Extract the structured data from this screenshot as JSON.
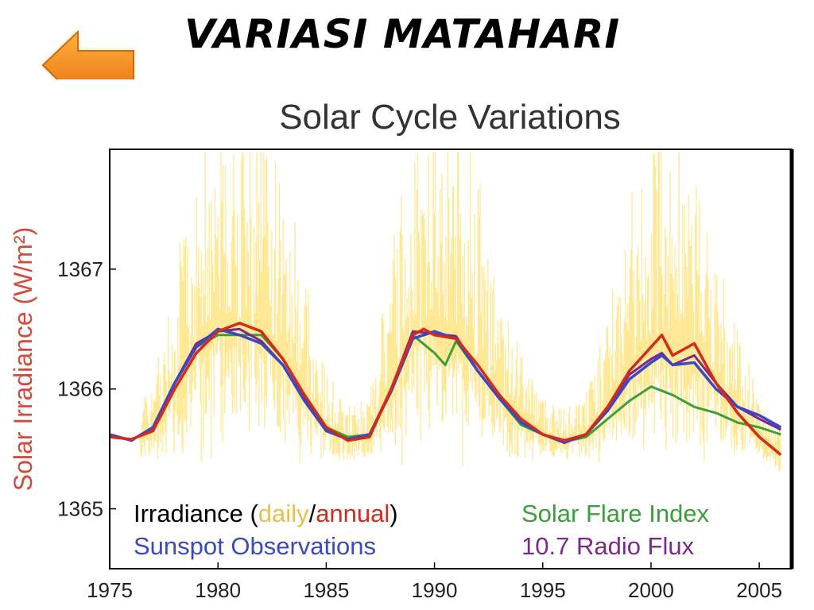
{
  "slide": {
    "title": "VARIASI MATAHARI",
    "back_icon": "left-arrow-icon"
  },
  "colors": {
    "daily": "#ffd84a",
    "annual": "#d42a1a",
    "sunspot": "#3a48c8",
    "flare": "#3aa03a",
    "radio": "#7a2a8a",
    "ylabel": "#d44a3a",
    "arrow": "#f08a1a"
  },
  "chart_data": {
    "type": "line",
    "title": "Solar Cycle Variations",
    "xlabel": "",
    "ylabel": "Solar Irradiance (W/m²)",
    "xlim": [
      1975,
      2006.5
    ],
    "ylim": [
      1364.5,
      1368.0
    ],
    "x_ticks": [
      "1975",
      "1980",
      "1985",
      "1990",
      "1995",
      "2000",
      "2005"
    ],
    "y_ticks": [
      "1365",
      "1366",
      "1367"
    ],
    "legend": [
      {
        "text": "Irradiance (",
        "color": "#000000"
      },
      {
        "text": "daily",
        "color": "#e8c14a"
      },
      {
        "text": "/",
        "color": "#000000"
      },
      {
        "text": "annual",
        "color": "#d42a1a"
      },
      {
        "text": ")",
        "color": "#000000"
      }
    ],
    "legend_items": {
      "sunspot": "Sunspot Observations",
      "flare": "Solar Flare Index",
      "radio": "10.7 Radio Flux"
    },
    "series": [
      {
        "key": "annual",
        "values": [
          [
            1975.0,
            1365.6
          ],
          [
            1976.0,
            1365.58
          ],
          [
            1977.0,
            1365.65
          ],
          [
            1978.0,
            1366.0
          ],
          [
            1979.0,
            1366.3
          ],
          [
            1980.0,
            1366.48
          ],
          [
            1981.0,
            1366.55
          ],
          [
            1982.0,
            1366.48
          ],
          [
            1983.0,
            1366.25
          ],
          [
            1984.0,
            1365.95
          ],
          [
            1985.0,
            1365.68
          ],
          [
            1986.0,
            1365.57
          ],
          [
            1987.0,
            1365.6
          ],
          [
            1988.0,
            1366.0
          ],
          [
            1989.0,
            1366.45
          ],
          [
            1989.5,
            1366.5
          ],
          [
            1990.0,
            1366.45
          ],
          [
            1991.0,
            1366.42
          ],
          [
            1992.0,
            1366.2
          ],
          [
            1993.0,
            1365.95
          ],
          [
            1994.0,
            1365.75
          ],
          [
            1995.0,
            1365.62
          ],
          [
            1996.0,
            1365.57
          ],
          [
            1997.0,
            1365.62
          ],
          [
            1998.0,
            1365.85
          ],
          [
            1999.0,
            1366.15
          ],
          [
            2000.0,
            1366.35
          ],
          [
            2000.5,
            1366.45
          ],
          [
            2001.0,
            1366.28
          ],
          [
            2002.0,
            1366.38
          ],
          [
            2003.0,
            1366.05
          ],
          [
            2004.0,
            1365.8
          ],
          [
            2005.0,
            1365.6
          ],
          [
            2006.0,
            1365.45
          ]
        ]
      },
      {
        "key": "sunspot",
        "values": [
          [
            1975.0,
            1365.62
          ],
          [
            1976.0,
            1365.57
          ],
          [
            1977.0,
            1365.68
          ],
          [
            1978.0,
            1366.05
          ],
          [
            1979.0,
            1366.35
          ],
          [
            1980.0,
            1366.5
          ],
          [
            1981.0,
            1366.45
          ],
          [
            1982.0,
            1366.38
          ],
          [
            1983.0,
            1366.2
          ],
          [
            1984.0,
            1365.9
          ],
          [
            1985.0,
            1365.65
          ],
          [
            1986.0,
            1365.58
          ],
          [
            1987.0,
            1365.62
          ],
          [
            1988.0,
            1365.98
          ],
          [
            1989.0,
            1366.42
          ],
          [
            1990.0,
            1366.48
          ],
          [
            1991.0,
            1366.42
          ],
          [
            1992.0,
            1366.15
          ],
          [
            1993.0,
            1365.92
          ],
          [
            1994.0,
            1365.72
          ],
          [
            1995.0,
            1365.62
          ],
          [
            1996.0,
            1365.56
          ],
          [
            1997.0,
            1365.62
          ],
          [
            1998.0,
            1365.82
          ],
          [
            1999.0,
            1366.08
          ],
          [
            2000.0,
            1366.22
          ],
          [
            2000.5,
            1366.28
          ],
          [
            2001.0,
            1366.2
          ],
          [
            2002.0,
            1366.22
          ],
          [
            2003.0,
            1366.0
          ],
          [
            2004.0,
            1365.85
          ],
          [
            2005.0,
            1365.78
          ],
          [
            2006.0,
            1365.68
          ]
        ]
      },
      {
        "key": "flare",
        "values": [
          [
            1975.0,
            1365.62
          ],
          [
            1976.0,
            1365.57
          ],
          [
            1977.0,
            1365.68
          ],
          [
            1978.0,
            1366.05
          ],
          [
            1979.0,
            1366.35
          ],
          [
            1980.0,
            1366.45
          ],
          [
            1981.0,
            1366.45
          ],
          [
            1982.0,
            1366.45
          ],
          [
            1983.0,
            1366.25
          ],
          [
            1984.0,
            1365.95
          ],
          [
            1985.0,
            1365.68
          ],
          [
            1986.0,
            1365.6
          ],
          [
            1987.0,
            1365.62
          ],
          [
            1988.0,
            1365.98
          ],
          [
            1989.0,
            1366.45
          ],
          [
            1990.0,
            1366.3
          ],
          [
            1990.5,
            1366.2
          ],
          [
            1991.0,
            1366.4
          ],
          [
            1992.0,
            1366.15
          ],
          [
            1993.0,
            1365.92
          ],
          [
            1994.0,
            1365.7
          ],
          [
            1995.0,
            1365.62
          ],
          [
            1996.0,
            1365.56
          ],
          [
            1997.0,
            1365.6
          ],
          [
            1998.0,
            1365.75
          ],
          [
            1999.0,
            1365.9
          ],
          [
            2000.0,
            1366.02
          ],
          [
            2001.0,
            1365.95
          ],
          [
            2002.0,
            1365.85
          ],
          [
            2003.0,
            1365.8
          ],
          [
            2004.0,
            1365.72
          ],
          [
            2005.0,
            1365.68
          ],
          [
            2006.0,
            1365.62
          ]
        ]
      },
      {
        "key": "radio",
        "values": [
          [
            1975.0,
            1365.62
          ],
          [
            1976.0,
            1365.57
          ],
          [
            1977.0,
            1365.68
          ],
          [
            1978.0,
            1366.05
          ],
          [
            1979.0,
            1366.38
          ],
          [
            1980.0,
            1366.48
          ],
          [
            1981.0,
            1366.5
          ],
          [
            1982.0,
            1366.4
          ],
          [
            1983.0,
            1366.2
          ],
          [
            1984.0,
            1365.92
          ],
          [
            1985.0,
            1365.66
          ],
          [
            1986.0,
            1365.58
          ],
          [
            1987.0,
            1365.62
          ],
          [
            1988.0,
            1366.0
          ],
          [
            1989.0,
            1366.48
          ],
          [
            1990.0,
            1366.46
          ],
          [
            1991.0,
            1366.44
          ],
          [
            1992.0,
            1366.15
          ],
          [
            1993.0,
            1365.92
          ],
          [
            1994.0,
            1365.72
          ],
          [
            1995.0,
            1365.62
          ],
          [
            1996.0,
            1365.55
          ],
          [
            1997.0,
            1365.62
          ],
          [
            1998.0,
            1365.85
          ],
          [
            1999.0,
            1366.12
          ],
          [
            2000.0,
            1366.25
          ],
          [
            2000.5,
            1366.3
          ],
          [
            2001.0,
            1366.2
          ],
          [
            2002.0,
            1366.28
          ],
          [
            2003.0,
            1366.05
          ],
          [
            2004.0,
            1365.85
          ],
          [
            2005.0,
            1365.75
          ],
          [
            2006.0,
            1365.66
          ]
        ]
      }
    ]
  }
}
